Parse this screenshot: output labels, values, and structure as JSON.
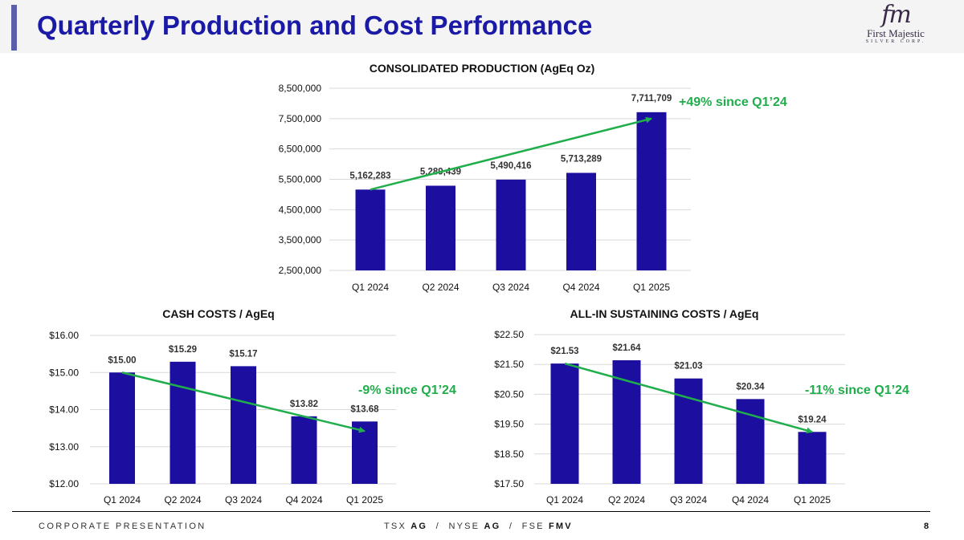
{
  "header": {
    "title": "Quarterly Production and Cost Performance"
  },
  "logo": {
    "mark": "fm",
    "name": "First Majestic",
    "subtitle": "SILVER CORP."
  },
  "footer": {
    "left": "CORPORATE PRESENTATION",
    "exchanges": [
      {
        "exchange": "TSX",
        "ticker": "AG"
      },
      {
        "exchange": "NYSE",
        "ticker": "AG"
      },
      {
        "exchange": "FSE",
        "ticker": "FMV"
      }
    ],
    "page_number": "8"
  },
  "colors": {
    "bar": "#1c0fa0",
    "trend": "#1fae4b",
    "title": "#1a1aa6"
  },
  "chart_data": [
    {
      "id": "production",
      "type": "bar",
      "title": "CONSOLIDATED PRODUCTION (AgEq Oz)",
      "categories": [
        "Q1 2024",
        "Q2 2024",
        "Q3 2024",
        "Q4 2024",
        "Q1 2025"
      ],
      "values": [
        5162283,
        5289439,
        5490416,
        5713289,
        7711709
      ],
      "value_labels": [
        "5,162,283",
        "5,289,439",
        "5,490,416",
        "5,713,289",
        "7,711,709"
      ],
      "ylim": [
        2500000,
        8500000
      ],
      "yticks": [
        2500000,
        3500000,
        4500000,
        5500000,
        6500000,
        7500000,
        8500000
      ],
      "ytick_labels": [
        "2,500,000",
        "3,500,000",
        "4,500,000",
        "5,500,000",
        "6,500,000",
        "7,500,000",
        "8,500,000"
      ],
      "grid": true,
      "annotation": "+49% since Q1’24"
    },
    {
      "id": "cash",
      "type": "bar",
      "title": "CASH COSTS / AgEq",
      "categories": [
        "Q1 2024",
        "Q2 2024",
        "Q3 2024",
        "Q4 2024",
        "Q1 2025"
      ],
      "values": [
        15.0,
        15.29,
        15.17,
        13.82,
        13.68
      ],
      "value_labels": [
        "$15.00",
        "$15.29",
        "$15.17",
        "$13.82",
        "$13.68"
      ],
      "ylim": [
        12,
        16
      ],
      "yticks": [
        12,
        13,
        14,
        15,
        16
      ],
      "ytick_labels": [
        "$12.00",
        "$13.00",
        "$14.00",
        "$15.00",
        "$16.00"
      ],
      "grid": true,
      "annotation": "-9% since Q1’24"
    },
    {
      "id": "aisc",
      "type": "bar",
      "title": "ALL-IN SUSTAINING COSTS / AgEq",
      "categories": [
        "Q1 2024",
        "Q2 2024",
        "Q3 2024",
        "Q4 2024",
        "Q1 2025"
      ],
      "values": [
        21.53,
        21.64,
        21.03,
        20.34,
        19.24
      ],
      "value_labels": [
        "$21.53",
        "$21.64",
        "$21.03",
        "$20.34",
        "$19.24"
      ],
      "ylim": [
        17.5,
        22.5
      ],
      "yticks": [
        17.5,
        18.5,
        19.5,
        20.5,
        21.5,
        22.5
      ],
      "ytick_labels": [
        "$17.50",
        "$18.50",
        "$19.50",
        "$20.50",
        "$21.50",
        "$22.50"
      ],
      "grid": true,
      "annotation": "-11% since Q1’24"
    }
  ]
}
